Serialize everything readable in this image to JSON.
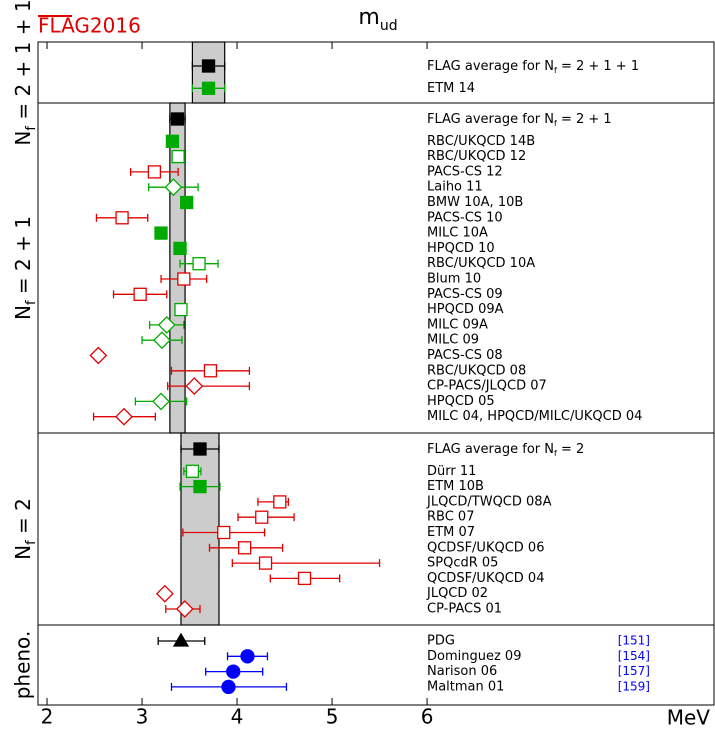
{
  "chart_data": {
    "type": "forest",
    "logo": "FLAG2016",
    "title": [
      "m",
      "ud"
    ],
    "xlabel": "MeV",
    "xlim": [
      1.905,
      9.02
    ],
    "xticks": [
      2,
      3,
      4,
      5,
      6
    ],
    "panels": [
      {
        "label": [
          "N",
          "f",
          " = 2 + 1 + 1"
        ],
        "points": [
          {
            "name": [
              "FLAG average for N",
              "f",
              " = 2 + 1 + 1"
            ],
            "value": 3.7,
            "err": [
              0.17,
              0.17
            ],
            "marker": "square",
            "color": "#000000",
            "filled": true,
            "average": true
          },
          {
            "name": "ETM 14",
            "value": 3.7,
            "err": [
              0.17,
              0.17
            ],
            "marker": "square",
            "color": "#00aa00",
            "filled": true
          }
        ]
      },
      {
        "label": [
          "N",
          "f",
          " = 2 + 1"
        ],
        "points": [
          {
            "name": [
              "FLAG average for N",
              "f",
              " = 2 + 1"
            ],
            "value": 3.373,
            "err": [
              0.08,
              0.08
            ],
            "marker": "square",
            "color": "#000000",
            "filled": true,
            "average": true
          },
          {
            "name": "RBC/UKQCD 14B",
            "value": 3.32,
            "marker": "square",
            "color": "#00aa00",
            "filled": true
          },
          {
            "name": "RBC/UKQCD 12",
            "value": 3.38,
            "err": [
              0.05,
              0.05
            ],
            "marker": "square",
            "color": "#00aa00",
            "filled": false
          },
          {
            "name": "PACS-CS 12",
            "value": 3.13,
            "err": [
              0.25,
              0.25
            ],
            "marker": "square",
            "color": "#e00000",
            "filled": false
          },
          {
            "name": "Laiho 11",
            "value": 3.33,
            "err": [
              0.26,
              0.26
            ],
            "marker": "diamond",
            "color": "#00aa00",
            "filled": false
          },
          {
            "name": "BMW 10A, 10B",
            "value": 3.47,
            "marker": "square",
            "color": "#00aa00",
            "filled": true
          },
          {
            "name": "PACS-CS 10",
            "value": 2.79,
            "err": [
              0.27,
              0.27
            ],
            "marker": "square",
            "color": "#e00000",
            "filled": false
          },
          {
            "name": "MILC 10A",
            "value": 3.2,
            "marker": "square",
            "color": "#00aa00",
            "filled": true
          },
          {
            "name": "HPQCD 10",
            "value": 3.4,
            "marker": "square",
            "color": "#00aa00",
            "filled": true
          },
          {
            "name": "RBC/UKQCD 10A",
            "value": 3.6,
            "err": [
              0.2,
              0.2
            ],
            "marker": "square",
            "color": "#00aa00",
            "filled": false
          },
          {
            "name": "Blum 10",
            "value": 3.44,
            "err": [
              0.24,
              0.24
            ],
            "marker": "square",
            "color": "#e00000",
            "filled": false
          },
          {
            "name": "PACS-CS 09",
            "value": 2.98,
            "err": [
              0.28,
              0.28
            ],
            "marker": "square",
            "color": "#e00000",
            "filled": false
          },
          {
            "name": "HPQCD 09A",
            "value": 3.41,
            "marker": "square",
            "color": "#00aa00",
            "filled": false
          },
          {
            "name": "MILC 09A",
            "value": 3.26,
            "err": [
              0.18,
              0.18
            ],
            "marker": "diamond",
            "color": "#00aa00",
            "filled": false
          },
          {
            "name": "MILC 09",
            "value": 3.21,
            "err": [
              0.21,
              0.21
            ],
            "marker": "diamond",
            "color": "#00aa00",
            "filled": false
          },
          {
            "name": "PACS-CS 08",
            "value": 2.54,
            "marker": "diamond",
            "color": "#e00000",
            "filled": false
          },
          {
            "name": "RBC/UKQCD 08",
            "value": 3.72,
            "err": [
              0.41,
              0.41
            ],
            "marker": "square",
            "color": "#e00000",
            "filled": false
          },
          {
            "name": "CP-PACS/JLQCD 07",
            "value": 3.55,
            "err": [
              0.28,
              0.58
            ],
            "marker": "diamond",
            "color": "#e00000",
            "filled": false
          },
          {
            "name": "HPQCD 05",
            "value": 3.2,
            "err": [
              0.27,
              0.27
            ],
            "marker": "diamond",
            "color": "#00aa00",
            "filled": false
          },
          {
            "name": "MILC 04, HPQCD/MILC/UKQCD 04",
            "value": 2.81,
            "err": [
              0.32,
              0.33
            ],
            "marker": "diamond",
            "color": "#e00000",
            "filled": false
          }
        ]
      },
      {
        "label": [
          "N",
          "f",
          " = 2"
        ],
        "points": [
          {
            "name": [
              "FLAG average for N",
              "f",
              " = 2"
            ],
            "value": 3.61,
            "err": [
              0.2,
              0.2
            ],
            "marker": "square",
            "color": "#000000",
            "filled": true,
            "average": true
          },
          {
            "name": "Dürr 11",
            "value": 3.53,
            "err": [
              0.09,
              0.09
            ],
            "marker": "square",
            "color": "#00aa00",
            "filled": false
          },
          {
            "name": "ETM 10B",
            "value": 3.61,
            "err": [
              0.21,
              0.21
            ],
            "marker": "square",
            "color": "#00aa00",
            "filled": true
          },
          {
            "name": "JLQCD/TWQCD 08A",
            "value": 4.45,
            "err": [
              0.23,
              0.09
            ],
            "marker": "square",
            "color": "#e00000",
            "filled": false
          },
          {
            "name": "RBC 07",
            "value": 4.26,
            "err": [
              0.25,
              0.34
            ],
            "marker": "square",
            "color": "#e00000",
            "filled": false
          },
          {
            "name": "ETM 07",
            "value": 3.86,
            "err": [
              0.43,
              0.43
            ],
            "marker": "square",
            "color": "#e00000",
            "filled": false
          },
          {
            "name": "QCDSF/UKQCD 06",
            "value": 4.08,
            "err": [
              0.37,
              0.4
            ],
            "marker": "square",
            "color": "#e00000",
            "filled": false
          },
          {
            "name": "SPQcdR 05",
            "value": 4.3,
            "err": [
              0.35,
              1.2
            ],
            "marker": "square",
            "color": "#e00000",
            "filled": false
          },
          {
            "name": "QCDSF/UKQCD 04",
            "value": 4.71,
            "err": [
              0.36,
              0.37
            ],
            "marker": "square",
            "color": "#e00000",
            "filled": false
          },
          {
            "name": "JLQCD 02",
            "value": 3.24,
            "marker": "diamond",
            "color": "#e00000",
            "filled": false
          },
          {
            "name": "CP-PACS 01",
            "value": 3.45,
            "err": [
              0.2,
              0.16
            ],
            "marker": "diamond",
            "color": "#e00000",
            "filled": false
          }
        ]
      },
      {
        "label": "pheno.",
        "points": [
          {
            "name": "PDG",
            "value": 3.41,
            "err": [
              0.24,
              0.25
            ],
            "marker": "triangle",
            "color": "#000000",
            "filled": true,
            "ref": "[151]"
          },
          {
            "name": "Dominguez 09",
            "value": 4.11,
            "err": [
              0.21,
              0.21
            ],
            "marker": "circle",
            "color": "#0000ff",
            "filled": true,
            "ref": "[154]"
          },
          {
            "name": "Narison 06",
            "value": 3.96,
            "err": [
              0.29,
              0.31
            ],
            "marker": "circle",
            "color": "#0000ff",
            "filled": true,
            "ref": "[157]"
          },
          {
            "name": "Maltman 01",
            "value": 3.91,
            "err": [
              0.6,
              0.61
            ],
            "marker": "circle",
            "color": "#0000ff",
            "filled": true,
            "ref": "[159]"
          }
        ]
      }
    ]
  }
}
